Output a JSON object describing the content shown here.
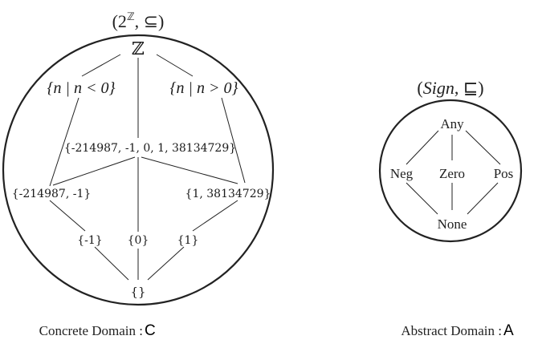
{
  "concrete": {
    "title": "(2ℤ, ⊆)",
    "title_base": "(2",
    "title_sup": "ℤ",
    "title_rest": ", ⊆)",
    "top": "ℤ",
    "negatives": "{n | n < 0}",
    "positives": "{n | n > 0}",
    "middle": "{-214987, -1, 0, 1, 38134729}",
    "left_set": "{-214987, -1}",
    "right_set": "{1, 38134729}",
    "singleton_neg": "{-1}",
    "singleton_zero": "{0}",
    "singleton_pos": "{1}",
    "bottom": "{}",
    "caption": "Concrete Domain : ",
    "caption_symbol": "C"
  },
  "abstract": {
    "title": "(Sign, ⊑)",
    "title_open": "(",
    "title_name": "Sign",
    "title_rest": ", ⊑)",
    "top": "Any",
    "neg": "Neg",
    "zero": "Zero",
    "pos": "Pos",
    "bottom": "None",
    "caption": "Abstract Domain : ",
    "caption_symbol": "A"
  }
}
